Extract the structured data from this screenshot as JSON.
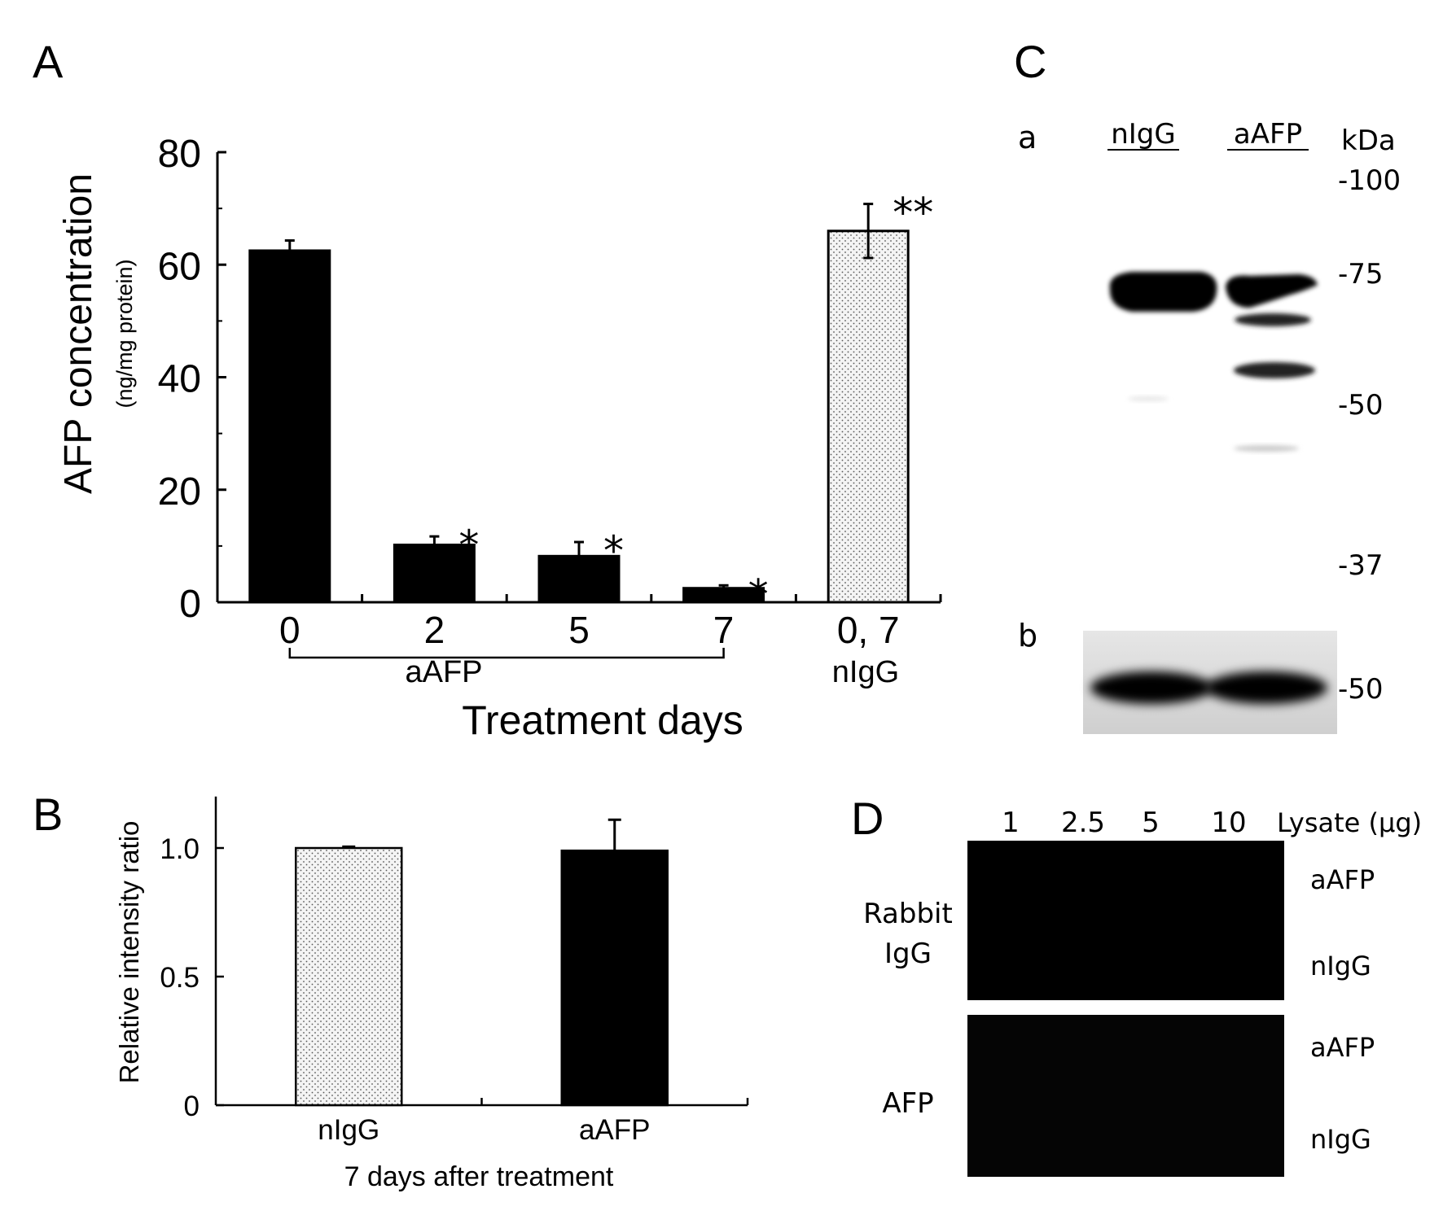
{
  "panels": {
    "A": {
      "letter": "A",
      "chart_data": {
        "type": "bar",
        "categories": [
          "0",
          "2",
          "5",
          "7",
          "0, 7"
        ],
        "values": [
          62.5,
          10.2,
          8.2,
          2.5,
          66.0
        ],
        "errors": [
          1.8,
          1.5,
          2.5,
          0.5,
          4.8
        ],
        "bar_styles": [
          "solid",
          "solid",
          "solid",
          "solid",
          "dotted"
        ],
        "significance": [
          "",
          "*",
          "*",
          "*",
          "**"
        ],
        "group_labels": [
          "aAFP",
          "nIgG"
        ],
        "xlabel": "Treatment days",
        "ylabel": "AFP concentration",
        "ylabel_unit": "(ng/mg protein)",
        "ylim": [
          0,
          80
        ],
        "yticks": [
          "0",
          "20",
          "40",
          "60",
          "80"
        ],
        "grid": false,
        "colors": {
          "solid": "#000000",
          "dotted_fill": "#f3f3f3"
        }
      }
    },
    "B": {
      "letter": "B",
      "chart_data": {
        "type": "bar",
        "categories": [
          "nIgG",
          "aAFP"
        ],
        "values": [
          1.0,
          0.99
        ],
        "errors": [
          0.005,
          0.12
        ],
        "bar_styles": [
          "dotted",
          "solid"
        ],
        "xlabel": "7 days after treatment",
        "ylabel": "Relative intensity ratio",
        "ylim": [
          0,
          1.2
        ],
        "yticks": [
          "0",
          "0.5",
          "1.0"
        ],
        "grid": false
      }
    },
    "C": {
      "letter": "C",
      "sub_a": "a",
      "sub_b": "b",
      "lanes": [
        "nIgG",
        "aAFP"
      ],
      "unit": "kDa",
      "markers": [
        "-100",
        "-75",
        "-50",
        "-37"
      ],
      "marker_b": "-50"
    },
    "D": {
      "letter": "D",
      "lysate_amounts": [
        "1",
        "2.5",
        "5",
        "10"
      ],
      "lysate_label": "Lysate (µg)",
      "blot1_label_line1": "Rabbit",
      "blot1_label_line2": "IgG",
      "blot2_label": "AFP",
      "row_labels": [
        "aAFP",
        "nIgG",
        "aAFP",
        "nIgG"
      ]
    }
  }
}
